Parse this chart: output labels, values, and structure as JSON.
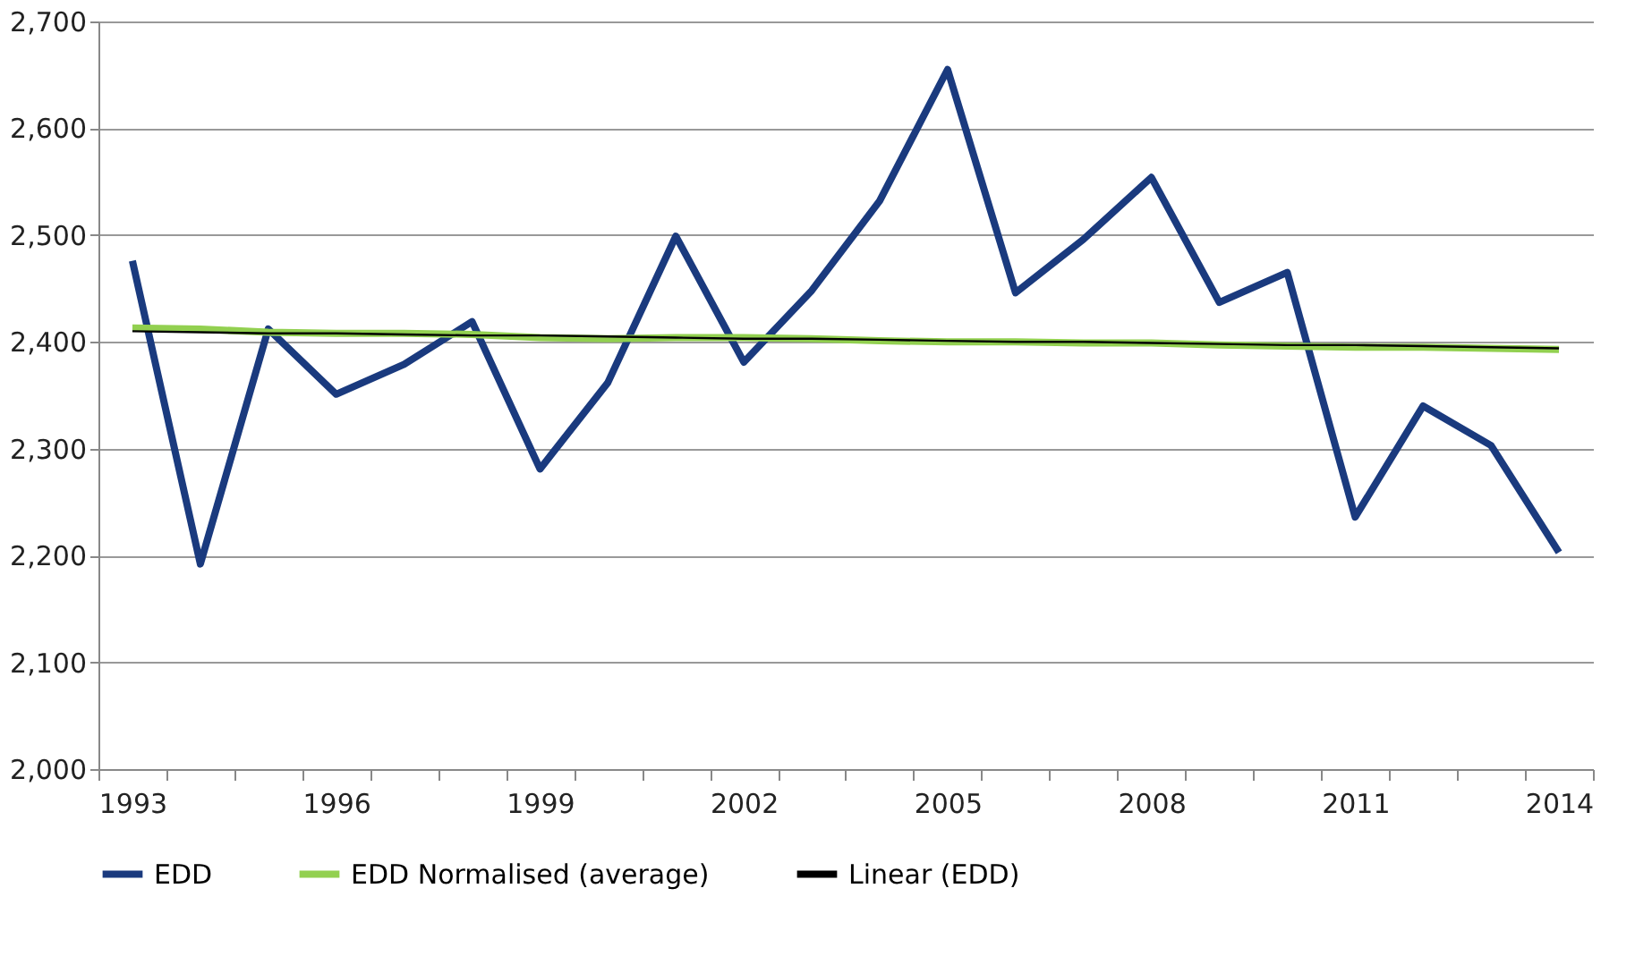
{
  "chart_data": {
    "type": "line",
    "categories": [
      "1993",
      null,
      null,
      "1996",
      null,
      null,
      "1999",
      null,
      null,
      "2002",
      null,
      null,
      "2005",
      null,
      null,
      "2008",
      null,
      null,
      "2011",
      null,
      null,
      "2014"
    ],
    "series": [
      {
        "name": "EDD",
        "color": "#1a3a7e",
        "values": [
          2476,
          2192,
          2412,
          2351,
          2379,
          2419,
          2281,
          2362,
          2499,
          2381,
          2448,
          2532,
          2655,
          2446,
          2496,
          2554,
          2437,
          2465,
          2236,
          2340,
          2303,
          2203
        ]
      },
      {
        "name": "EDD Normalised (average)",
        "color": "#92d050",
        "values": [
          2413,
          2412,
          2409,
          2408,
          2408,
          2407,
          2404,
          2403,
          2404,
          2404,
          2403,
          2401,
          2400,
          2400,
          2399,
          2399,
          2397,
          2396,
          2395,
          2395,
          2394,
          2393
        ]
      },
      {
        "name": "Linear (EDD)",
        "color": "#000000",
        "values": [
          2410,
          2409,
          2408,
          2408,
          2407,
          2406,
          2406,
          2405,
          2404,
          2403,
          2403,
          2402,
          2401,
          2400,
          2400,
          2399,
          2398,
          2397,
          2397,
          2396,
          2395,
          2394
        ]
      }
    ],
    "ylim": [
      2000,
      2700
    ],
    "yticks": [
      {
        "value": 2000,
        "label": "2,000"
      },
      {
        "value": 2100,
        "label": "2,100"
      },
      {
        "value": 2200,
        "label": "2,200"
      },
      {
        "value": 2300,
        "label": "2,300"
      },
      {
        "value": 2400,
        "label": "2,400"
      },
      {
        "value": 2500,
        "label": "2,500"
      },
      {
        "value": 2600,
        "label": "2,600"
      },
      {
        "value": 2700,
        "label": "2,700"
      }
    ],
    "grid": "y",
    "legend": "bottom"
  }
}
